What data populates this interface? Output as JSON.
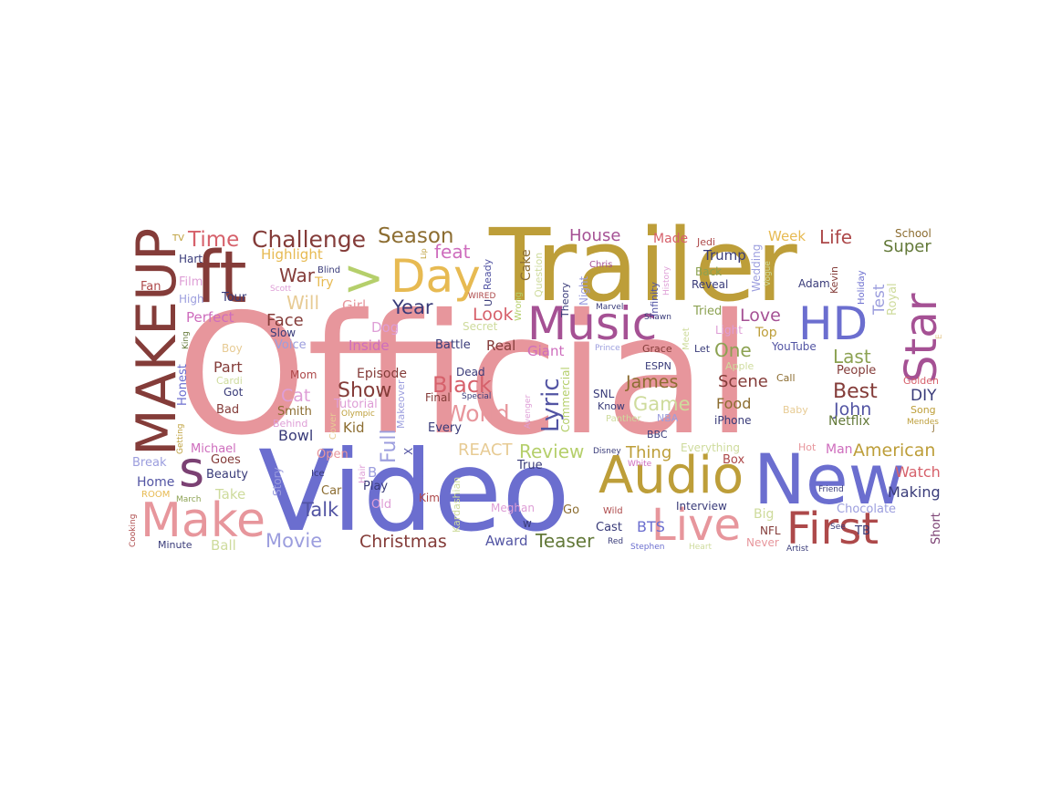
{
  "words": [
    {
      "text": "Official",
      "color": "#e7969c"
    },
    {
      "text": "Video",
      "color": "#6b6ecf"
    },
    {
      "text": "Trailer",
      "color": "#bd9e39"
    },
    {
      "text": "New",
      "color": "#6b6ecf"
    },
    {
      "text": "Audio",
      "color": "#bd9e39"
    },
    {
      "text": "MAKEUP",
      "color": "#843c39"
    },
    {
      "text": "ft",
      "color": "#843c39"
    },
    {
      "text": "Music",
      "color": "#a55194"
    },
    {
      "text": "HD",
      "color": "#6b6ecf"
    },
    {
      "text": "Day",
      "color": "#e7ba52"
    },
    {
      "text": "Star",
      "color": "#a55194"
    },
    {
      "text": "Live",
      "color": "#e7969c"
    },
    {
      "text": "First",
      "color": "#ad494a"
    },
    {
      "text": "Make",
      "color": "#e7969c"
    },
    {
      "text": "s",
      "color": "#7b4173"
    },
    {
      "text": ">",
      "color": "#b5cf6b"
    },
    {
      "text": "Challenge",
      "color": "#843c39"
    },
    {
      "text": "Season",
      "color": "#8c6d31"
    },
    {
      "text": "Time",
      "color": "#d6616b"
    },
    {
      "text": "Lyric",
      "color": "#5254a3"
    },
    {
      "text": "World",
      "color": "#e7969c"
    },
    {
      "text": "Black",
      "color": "#d6616b"
    },
    {
      "text": "Show",
      "color": "#843c39"
    },
    {
      "text": "Full",
      "color": "#9c9ede"
    },
    {
      "text": "Review",
      "color": "#b5cf6b"
    },
    {
      "text": "American",
      "color": "#bd9e39"
    },
    {
      "text": "Best",
      "color": "#843c39"
    },
    {
      "text": "Talk",
      "color": "#5254a3"
    },
    {
      "text": "Movie",
      "color": "#9c9ede"
    },
    {
      "text": "Christmas",
      "color": "#843c39"
    },
    {
      "text": "Teaser",
      "color": "#637939"
    },
    {
      "text": "Game",
      "color": "#cedb9c"
    },
    {
      "text": "James",
      "color": "#8c6d31"
    },
    {
      "text": "John",
      "color": "#5254a3"
    },
    {
      "text": "Year",
      "color": "#393b79"
    },
    {
      "text": "Look",
      "color": "#d6616b"
    },
    {
      "text": "Love",
      "color": "#a55194"
    },
    {
      "text": "One",
      "color": "#8ca252"
    },
    {
      "text": "Scene",
      "color": "#843c39"
    },
    {
      "text": "Last",
      "color": "#8ca252"
    },
    {
      "text": "Life",
      "color": "#ad494a"
    },
    {
      "text": "Super",
      "color": "#637939"
    },
    {
      "text": "House",
      "color": "#a55194"
    },
    {
      "text": "feat",
      "color": "#ce6dbd"
    },
    {
      "text": "War",
      "color": "#843c39"
    },
    {
      "text": "Will",
      "color": "#e7cb94"
    },
    {
      "text": "Face",
      "color": "#843c39"
    },
    {
      "text": "Cat",
      "color": "#de9ed6"
    },
    {
      "text": "Part",
      "color": "#843c39"
    },
    {
      "text": "REACT",
      "color": "#e7cb94"
    },
    {
      "text": "Thing",
      "color": "#bd9e39"
    },
    {
      "text": "Watch",
      "color": "#d6616b"
    },
    {
      "text": "Making",
      "color": "#393b79"
    },
    {
      "text": "Bowl",
      "color": "#393b79"
    },
    {
      "text": "Kid",
      "color": "#8c6d31"
    },
    {
      "text": "Highlight",
      "color": "#e7ba52"
    },
    {
      "text": "Perfect",
      "color": "#ce6dbd"
    },
    {
      "text": "Test",
      "color": "#9c9ede"
    },
    {
      "text": "DIY",
      "color": "#393b79"
    },
    {
      "text": "Food",
      "color": "#8c6d31"
    },
    {
      "text": "BTS",
      "color": "#6b6ecf"
    },
    {
      "text": "Award",
      "color": "#5254a3"
    },
    {
      "text": "Week",
      "color": "#e7ba52"
    },
    {
      "text": "Made",
      "color": "#d6616b"
    },
    {
      "text": "Trump",
      "color": "#393b79"
    },
    {
      "text": "Episode",
      "color": "#843c39"
    },
    {
      "text": "Inside",
      "color": "#ce6dbd"
    },
    {
      "text": "Girl",
      "color": "#e7969c"
    },
    {
      "text": "Dog",
      "color": "#de9ed6"
    },
    {
      "text": "Real",
      "color": "#843c39"
    },
    {
      "text": "Giant",
      "color": "#ce6dbd"
    },
    {
      "text": "Home",
      "color": "#5254a3"
    },
    {
      "text": "Take",
      "color": "#cedb9c"
    },
    {
      "text": "Ball",
      "color": "#cedb9c"
    },
    {
      "text": "Netflix",
      "color": "#637939"
    },
    {
      "text": "Tour",
      "color": "#393b79"
    },
    {
      "text": "Cake",
      "color": "#8c6d31"
    },
    {
      "text": "Smith",
      "color": "#8c6d31"
    },
    {
      "text": "Top",
      "color": "#bd9e39"
    },
    {
      "text": "Royal",
      "color": "#cedb9c"
    },
    {
      "text": "Big",
      "color": "#cedb9c"
    },
    {
      "text": "Box",
      "color": "#ad494a"
    },
    {
      "text": "Man",
      "color": "#ce6dbd"
    },
    {
      "text": "People",
      "color": "#843c39"
    },
    {
      "text": "Honest",
      "color": "#6b6ecf"
    },
    {
      "text": "Fan",
      "color": "#ad494a"
    },
    {
      "text": "Film",
      "color": "#de9ed6"
    },
    {
      "text": "Beauty",
      "color": "#393b79"
    },
    {
      "text": "Goes",
      "color": "#843c39"
    },
    {
      "text": "Break",
      "color": "#9c9ede"
    },
    {
      "text": "Michael",
      "color": "#ce6dbd"
    },
    {
      "text": "Voice",
      "color": "#9c9ede"
    },
    {
      "text": "Slow",
      "color": "#393b79"
    },
    {
      "text": "Mom",
      "color": "#ad494a"
    },
    {
      "text": "Try",
      "color": "#e7ba52"
    },
    {
      "text": "Tutorial",
      "color": "#de9ed6"
    },
    {
      "text": "Battle",
      "color": "#393b79"
    },
    {
      "text": "Dead",
      "color": "#393b79"
    },
    {
      "text": "Secret",
      "color": "#cedb9c"
    },
    {
      "text": "Every",
      "color": "#393b79"
    },
    {
      "text": "Final",
      "color": "#843c39"
    },
    {
      "text": "True",
      "color": "#393b79"
    },
    {
      "text": "Play",
      "color": "#393b79"
    },
    {
      "text": "Old",
      "color": "#de9ed6"
    },
    {
      "text": "Open",
      "color": "#e7969c"
    },
    {
      "text": "Car",
      "color": "#8c6d31"
    },
    {
      "text": "Kim",
      "color": "#ad494a"
    },
    {
      "text": "Go",
      "color": "#8c6d31"
    },
    {
      "text": "Meghan",
      "color": "#de9ed6"
    },
    {
      "text": "Cast",
      "color": "#393b79"
    },
    {
      "text": "Interview",
      "color": "#393b79"
    },
    {
      "text": "Chocolate",
      "color": "#9c9ede"
    },
    {
      "text": "Short",
      "color": "#7b4173"
    },
    {
      "text": "TB",
      "color": "#393b79"
    },
    {
      "text": "NFL",
      "color": "#843c39"
    },
    {
      "text": "Never",
      "color": "#e7969c"
    },
    {
      "text": "Everything",
      "color": "#cedb9c"
    },
    {
      "text": "iPhone",
      "color": "#393b79"
    },
    {
      "text": "BBC",
      "color": "#393b79"
    },
    {
      "text": "SNL",
      "color": "#393b79"
    },
    {
      "text": "ESPN",
      "color": "#393b79"
    },
    {
      "text": "Grace",
      "color": "#843c39"
    },
    {
      "text": "Let",
      "color": "#393b79"
    },
    {
      "text": "Light",
      "color": "#de9ed6"
    },
    {
      "text": "YouTube",
      "color": "#5254a3"
    },
    {
      "text": "Call",
      "color": "#8c6d31"
    },
    {
      "text": "Baby",
      "color": "#e7cb94"
    },
    {
      "text": "Hot",
      "color": "#e7969c"
    },
    {
      "text": "Tried",
      "color": "#8ca252"
    },
    {
      "text": "Reveal",
      "color": "#393b79"
    },
    {
      "text": "Back",
      "color": "#8ca252"
    },
    {
      "text": "Adam",
      "color": "#393b79"
    },
    {
      "text": "Golden",
      "color": "#d6616b"
    },
    {
      "text": "Song",
      "color": "#bd9e39"
    },
    {
      "text": "School",
      "color": "#8c6d31"
    },
    {
      "text": "Got",
      "color": "#393b79"
    },
    {
      "text": "Bad",
      "color": "#843c39"
    },
    {
      "text": "Boy",
      "color": "#e7cb94"
    },
    {
      "text": "High",
      "color": "#9c9ede"
    },
    {
      "text": "Hart",
      "color": "#393b79"
    },
    {
      "text": "TV",
      "color": "#bd9e39"
    },
    {
      "text": "Blind",
      "color": "#393b79"
    },
    {
      "text": "Scott",
      "color": "#de9ed6"
    },
    {
      "text": "WIRED",
      "color": "#ad494a"
    },
    {
      "text": "Chris",
      "color": "#a55194"
    },
    {
      "text": "Marvel",
      "color": "#393b79"
    },
    {
      "text": "Shawn",
      "color": "#393b79"
    },
    {
      "text": "Jedi",
      "color": "#ad494a"
    },
    {
      "text": "Apple",
      "color": "#cedb9c"
    },
    {
      "text": "Prince",
      "color": "#9c9ede"
    },
    {
      "text": "Know",
      "color": "#393b79"
    },
    {
      "text": "Panther",
      "color": "#cedb9c"
    },
    {
      "text": "NBA",
      "color": "#9c9ede"
    },
    {
      "text": "Disney",
      "color": "#393b79"
    },
    {
      "text": "White",
      "color": "#ce6dbd"
    },
    {
      "text": "Wild",
      "color": "#ad494a"
    },
    {
      "text": "Red",
      "color": "#393b79"
    },
    {
      "text": "Stephen",
      "color": "#6b6ecf"
    },
    {
      "text": "Heart",
      "color": "#cedb9c"
    },
    {
      "text": "Artist",
      "color": "#393b79"
    },
    {
      "text": "See",
      "color": "#393b79"
    },
    {
      "text": "Friend",
      "color": "#393b79"
    },
    {
      "text": "Special",
      "color": "#393b79"
    },
    {
      "text": "Olympic",
      "color": "#bd9e39"
    },
    {
      "text": "Behind",
      "color": "#de9ed6"
    },
    {
      "text": "Cardi",
      "color": "#cedb9c"
    },
    {
      "text": "Ice",
      "color": "#393b79"
    },
    {
      "text": "ROOM",
      "color": "#e7ba52"
    },
    {
      "text": "March",
      "color": "#8ca252"
    },
    {
      "text": "Minute",
      "color": "#393b79"
    },
    {
      "text": "Mendes",
      "color": "#bd9e39"
    },
    {
      "text": "Holiday",
      "color": "#6b6ecf"
    },
    {
      "text": "Kevin",
      "color": "#843c39"
    },
    {
      "text": "Wedding",
      "color": "#9c9ede"
    },
    {
      "text": "Vogue",
      "color": "#cedb9c"
    },
    {
      "text": "History",
      "color": "#de9ed6"
    },
    {
      "text": "Infinity",
      "color": "#5254a3"
    },
    {
      "text": "Theory",
      "color": "#393b79"
    },
    {
      "text": "Night",
      "color": "#9c9ede"
    },
    {
      "text": "Question",
      "color": "#cedb9c"
    },
    {
      "text": "Wrong",
      "color": "#b5cf6b"
    },
    {
      "text": "Ready",
      "color": "#5254a3"
    },
    {
      "text": "Lip",
      "color": "#bd9e39"
    },
    {
      "text": "U",
      "color": "#393b79"
    },
    {
      "text": "B",
      "color": "#9c9ede"
    },
    {
      "text": "X",
      "color": "#5254a3"
    },
    {
      "text": "w",
      "color": "#393b79"
    },
    {
      "text": "E",
      "color": "#e7cb94"
    },
    {
      "text": "J",
      "color": "#8c6d31"
    },
    {
      "text": "Story",
      "color": "#9c9ede"
    },
    {
      "text": "Hair",
      "color": "#de9ed6"
    },
    {
      "text": "Cover",
      "color": "#e7cb94"
    },
    {
      "text": "Makeover",
      "color": "#9c9ede"
    },
    {
      "text": "Kardashian",
      "color": "#cedb9c"
    },
    {
      "text": "Avenger",
      "color": "#de9ed6"
    },
    {
      "text": "Commercial",
      "color": "#b5cf6b"
    },
    {
      "text": "Meet",
      "color": "#cedb9c"
    },
    {
      "text": "Getting",
      "color": "#bd9e39"
    },
    {
      "text": "Cooking",
      "color": "#ad494a"
    },
    {
      "text": "King",
      "color": "#637939"
    }
  ]
}
